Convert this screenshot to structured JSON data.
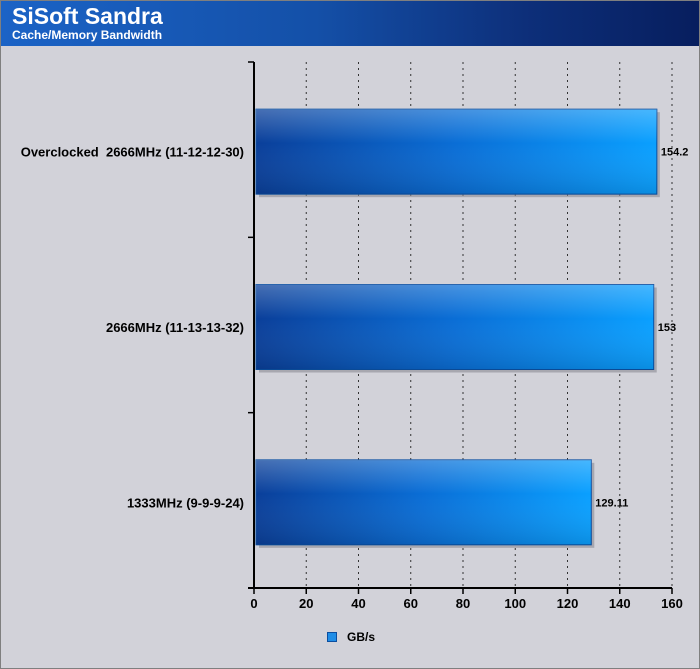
{
  "header": {
    "title": "SiSoft Sandra",
    "subtitle": "Cache/Memory Bandwidth"
  },
  "colors": {
    "bar_dark": "#0a3f9a",
    "bar_light": "#0aa0ff",
    "background": "#d2d2d9",
    "header_left": "#1b63c6",
    "header_right": "#071e5e"
  },
  "chart_data": {
    "type": "bar",
    "orientation": "horizontal",
    "title": "SiSoft Sandra",
    "subtitle": "Cache/Memory Bandwidth",
    "categories": [
      "Overclocked  2666MHz (11-12-12-30)",
      "2666MHz (11-13-13-32)",
      "1333MHz (9-9-9-24)"
    ],
    "series": [
      {
        "name": "GB/s",
        "values": [
          154.2,
          153,
          129.11
        ],
        "labels": [
          "154.2",
          "153",
          "129.11"
        ]
      }
    ],
    "xlim": [
      0,
      160
    ],
    "xticks": [
      0,
      20,
      40,
      60,
      80,
      100,
      120,
      140,
      160
    ],
    "grid": "vertical-dotted",
    "legend": "bottom-center"
  }
}
